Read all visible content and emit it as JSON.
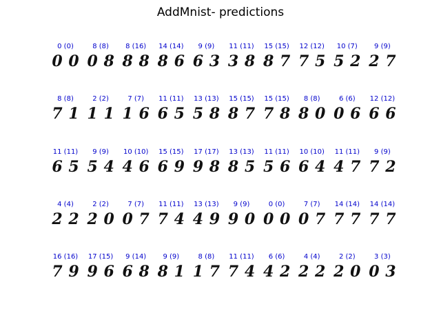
{
  "title": "AddMnist- predictions",
  "label_color": "#0000cc",
  "rows": [
    [
      {
        "label": "0 (0)",
        "digits": [
          "0",
          "0"
        ]
      },
      {
        "label": "8 (8)",
        "digits": [
          "0",
          "8"
        ]
      },
      {
        "label": "8 (16)",
        "digits": [
          "8",
          "8"
        ]
      },
      {
        "label": "14 (14)",
        "digits": [
          "8",
          "6"
        ]
      },
      {
        "label": "9 (9)",
        "digits": [
          "6",
          "3"
        ]
      },
      {
        "label": "11 (11)",
        "digits": [
          "3",
          "8"
        ]
      },
      {
        "label": "15 (15)",
        "digits": [
          "8",
          "7"
        ]
      },
      {
        "label": "12 (12)",
        "digits": [
          "7",
          "5"
        ]
      },
      {
        "label": "10 (7)",
        "digits": [
          "5",
          "2"
        ]
      },
      {
        "label": "9 (9)",
        "digits": [
          "2",
          "7"
        ]
      }
    ],
    [
      {
        "label": "8 (8)",
        "digits": [
          "7",
          "1"
        ]
      },
      {
        "label": "2 (2)",
        "digits": [
          "1",
          "1"
        ]
      },
      {
        "label": "7 (7)",
        "digits": [
          "1",
          "6"
        ]
      },
      {
        "label": "11 (11)",
        "digits": [
          "6",
          "5"
        ]
      },
      {
        "label": "13 (13)",
        "digits": [
          "5",
          "8"
        ]
      },
      {
        "label": "15 (15)",
        "digits": [
          "8",
          "7"
        ]
      },
      {
        "label": "15 (15)",
        "digits": [
          "7",
          "8"
        ]
      },
      {
        "label": "8 (8)",
        "digits": [
          "8",
          "0"
        ]
      },
      {
        "label": "6 (6)",
        "digits": [
          "0",
          "6"
        ]
      },
      {
        "label": "12 (12)",
        "digits": [
          "6",
          "6"
        ]
      }
    ],
    [
      {
        "label": "11 (11)",
        "digits": [
          "6",
          "5"
        ]
      },
      {
        "label": "9 (9)",
        "digits": [
          "5",
          "4"
        ]
      },
      {
        "label": "10 (10)",
        "digits": [
          "4",
          "6"
        ]
      },
      {
        "label": "15 (15)",
        "digits": [
          "6",
          "9"
        ]
      },
      {
        "label": "17 (17)",
        "digits": [
          "9",
          "8"
        ]
      },
      {
        "label": "13 (13)",
        "digits": [
          "8",
          "5"
        ]
      },
      {
        "label": "11 (11)",
        "digits": [
          "5",
          "6"
        ]
      },
      {
        "label": "10 (10)",
        "digits": [
          "6",
          "4"
        ]
      },
      {
        "label": "11 (11)",
        "digits": [
          "4",
          "7"
        ]
      },
      {
        "label": "9 (9)",
        "digits": [
          "7",
          "2"
        ]
      }
    ],
    [
      {
        "label": "4 (4)",
        "digits": [
          "2",
          "2"
        ]
      },
      {
        "label": "2 (2)",
        "digits": [
          "2",
          "0"
        ]
      },
      {
        "label": "7 (7)",
        "digits": [
          "0",
          "7"
        ]
      },
      {
        "label": "11 (11)",
        "digits": [
          "7",
          "4"
        ]
      },
      {
        "label": "13 (13)",
        "digits": [
          "4",
          "9"
        ]
      },
      {
        "label": "9 (9)",
        "digits": [
          "9",
          "0"
        ]
      },
      {
        "label": "0 (0)",
        "digits": [
          "0",
          "0"
        ]
      },
      {
        "label": "7 (7)",
        "digits": [
          "0",
          "7"
        ]
      },
      {
        "label": "14 (14)",
        "digits": [
          "7",
          "7"
        ]
      },
      {
        "label": "14 (14)",
        "digits": [
          "7",
          "7"
        ]
      }
    ],
    [
      {
        "label": "16 (16)",
        "digits": [
          "7",
          "9"
        ]
      },
      {
        "label": "17 (15)",
        "digits": [
          "9",
          "6"
        ]
      },
      {
        "label": "9 (14)",
        "digits": [
          "6",
          "8"
        ]
      },
      {
        "label": "9 (9)",
        "digits": [
          "8",
          "1"
        ]
      },
      {
        "label": "8 (8)",
        "digits": [
          "1",
          "7"
        ]
      },
      {
        "label": "11 (11)",
        "digits": [
          "7",
          "4"
        ]
      },
      {
        "label": "6 (6)",
        "digits": [
          "4",
          "2"
        ]
      },
      {
        "label": "4 (4)",
        "digits": [
          "2",
          "2"
        ]
      },
      {
        "label": "2 (2)",
        "digits": [
          "2",
          "0"
        ]
      },
      {
        "label": "3 (3)",
        "digits": [
          "0",
          "3"
        ]
      }
    ]
  ]
}
